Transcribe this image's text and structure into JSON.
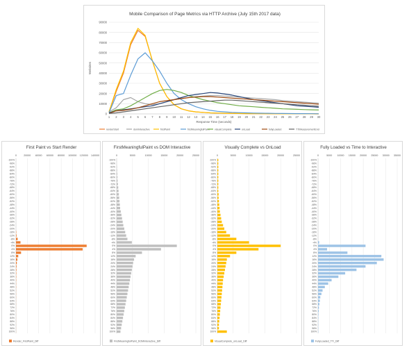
{
  "main_chart": {
    "title": "Mobile Comparison of Page Metrics via HTTP Archive (July 15th 2017 data)",
    "chart_data": {
      "type": "line",
      "title": "Mobile Comparison of Page Metrics via HTTP Archive (July 15th 2017 data)",
      "xlabel": "Response Time (seconds)",
      "ylabel": "Websites",
      "x": [
        1,
        2,
        3,
        4,
        5,
        6,
        7,
        8,
        9,
        10,
        11,
        12,
        13,
        14,
        15,
        16,
        17,
        18,
        19,
        20,
        21,
        22,
        23,
        24,
        25,
        26,
        27,
        28,
        29,
        30
      ],
      "ylim": [
        0,
        90000
      ],
      "yticks": [
        0,
        10000,
        20000,
        30000,
        40000,
        50000,
        60000,
        70000,
        80000,
        90000
      ],
      "grid": true,
      "legend_position": "bottom",
      "series": [
        {
          "name": "renderStart",
          "color": "#ed7d31",
          "values": [
            2000,
            22000,
            40000,
            68000,
            82000,
            76000,
            52000,
            30000,
            17000,
            9000,
            5000,
            3000,
            2000,
            1500,
            1000,
            800,
            600,
            500,
            400,
            300,
            250,
            200,
            150,
            120,
            100,
            80,
            60,
            50,
            40,
            30
          ]
        },
        {
          "name": "domInteractive",
          "color": "#a5a5a5",
          "values": [
            2000,
            6000,
            14000,
            16000,
            12000,
            10000,
            9000,
            10000,
            12000,
            14000,
            15000,
            16000,
            17000,
            17500,
            18000,
            18000,
            17500,
            17000,
            16500,
            16000,
            15500,
            15000,
            14500,
            14000,
            13000,
            12500,
            12000,
            11500,
            11000,
            10500
          ]
        },
        {
          "name": "firstPaint",
          "color": "#ffc000",
          "values": [
            2000,
            24000,
            42000,
            70000,
            84000,
            77000,
            52000,
            30000,
            17000,
            9000,
            5000,
            3000,
            2000,
            1500,
            1000,
            800,
            600,
            500,
            400,
            300,
            250,
            200,
            150,
            120,
            100,
            80,
            60,
            50,
            40,
            30
          ]
        },
        {
          "name": "firstMeaningfulPaint",
          "color": "#5b9bd5",
          "values": [
            1000,
            18000,
            20000,
            38000,
            54000,
            60000,
            52000,
            42000,
            30000,
            20000,
            14000,
            10000,
            7000,
            5000,
            3500,
            2500,
            2000,
            1500,
            1200,
            1000,
            800,
            700,
            600,
            500,
            400,
            350,
            300,
            250,
            200,
            150
          ]
        },
        {
          "name": "visualComplete",
          "color": "#70ad47",
          "values": [
            1000,
            4000,
            5000,
            8000,
            12000,
            16000,
            20000,
            23000,
            24000,
            23000,
            21000,
            18000,
            16000,
            14000,
            12500,
            11000,
            10000,
            9000,
            8000,
            7500,
            7000,
            6500,
            6000,
            5500,
            5000,
            4800,
            4500,
            4200,
            4000,
            3800
          ]
        },
        {
          "name": "onLoad",
          "color": "#264478",
          "values": [
            1000,
            3000,
            4000,
            5000,
            6000,
            7000,
            8000,
            10000,
            12000,
            14000,
            16000,
            18000,
            19000,
            20000,
            21000,
            20500,
            19500,
            18500,
            17000,
            15500,
            14000,
            13000,
            12000,
            11000,
            10000,
            9000,
            8000,
            7500,
            7000,
            6500
          ]
        },
        {
          "name": "fullyLoaded",
          "color": "#9e480e",
          "values": [
            500,
            3000,
            3500,
            4500,
            6000,
            8000,
            10000,
            12000,
            13000,
            14000,
            15000,
            16000,
            16500,
            17000,
            17000,
            16500,
            16000,
            15500,
            15000,
            14500,
            14000,
            13500,
            13000,
            12500,
            12000,
            11500,
            11000,
            10500,
            10000,
            9500
          ]
        },
        {
          "name": "TTIMeasurementEnd",
          "color": "#636363",
          "values": [
            500,
            1000,
            2000,
            3000,
            4000,
            5000,
            6000,
            7000,
            8000,
            9000,
            10000,
            11000,
            11500,
            12000,
            12500,
            13000,
            13500,
            13500,
            13000,
            12500,
            12000,
            11500,
            11000,
            10500,
            10000,
            9500,
            9000,
            8500,
            8000,
            7500
          ]
        }
      ]
    }
  },
  "y_categories": [
    "-100%",
    "-96%",
    "-92%",
    "-88%",
    "-84%",
    "-80%",
    "-76%",
    "-72%",
    "-68%",
    "-64%",
    "-60%",
    "-56%",
    "-52%",
    "-48%",
    "-44%",
    "-40%",
    "-36%",
    "-32%",
    "-28%",
    "-24%",
    "-20%",
    "-16%",
    "-12%",
    "-8%",
    "-4%",
    "0%",
    "4%",
    "8%",
    "12%",
    "16%",
    "20%",
    "24%",
    "28%",
    "32%",
    "36%",
    "40%",
    "44%",
    "48%",
    "52%",
    "56%",
    "60%",
    "64%",
    "68%",
    "72%",
    "76%",
    "80%",
    "84%",
    "88%",
    "92%",
    "96%",
    "100%"
  ],
  "diff_charts": [
    {
      "title": "First Paint vs Start Render",
      "chart_data": {
        "type": "bar",
        "orientation": "horizontal",
        "title": "First Paint vs Start Render",
        "xlim": [
          0,
          140000
        ],
        "xticks": [
          0,
          20000,
          40000,
          60000,
          80000,
          100000,
          120000,
          140000
        ],
        "series": [
          {
            "name": "Render_FirstPaint_Diff",
            "color": "#ed7d31",
            "values": [
              0,
              0,
              0,
              0,
              0,
              0,
              0,
              0,
              0,
              0,
              0,
              0,
              0,
              0,
              0,
              0,
              0,
              0,
              0,
              0,
              0,
              500,
              1000,
              3000,
              8000,
              125000,
              118000,
              9000,
              4000,
              2500,
              1500,
              1000,
              800,
              600,
              500,
              400,
              300,
              300,
              200,
              200,
              200,
              150,
              150,
              100,
              100,
              100,
              100,
              100,
              100,
              100,
              100
            ]
          }
        ]
      }
    },
    {
      "title": "FirstMeaningfulPaint vs DOM Interactive",
      "chart_data": {
        "type": "bar",
        "orientation": "horizontal",
        "title": "FirstMeaningfulPaint vs DOM Interactive",
        "xlim": [
          0,
          25000
        ],
        "xticks": [
          0,
          5000,
          10000,
          15000,
          20000,
          25000
        ],
        "series": [
          {
            "name": "FirstMeaningfulPaint_DOMInteractive_Diff",
            "color": "#bfbfbf",
            "values": [
              0,
              0,
              100,
              150,
              200,
              250,
              300,
              400,
              500,
              600,
              700,
              800,
              900,
              1000,
              1100,
              1300,
              1500,
              1700,
              1900,
              2100,
              2400,
              2700,
              3000,
              3400,
              4800,
              19000,
              14000,
              8000,
              6000,
              5500,
              5200,
              5000,
              4800,
              4600,
              4400,
              4200,
              4000,
              3800,
              3600,
              3400,
              3200,
              3000,
              2800,
              2600,
              2400,
              2200,
              2000,
              1800,
              1600,
              1400,
              1200
            ]
          }
        ]
      }
    },
    {
      "title": "Visually Complete vs OnLoad",
      "chart_data": {
        "type": "bar",
        "orientation": "horizontal",
        "title": "Visually Complete vs OnLoad",
        "xlim": [
          0,
          25000
        ],
        "xticks": [
          0,
          5000,
          10000,
          15000,
          20000,
          25000
        ],
        "series": [
          {
            "name": "VisualComplete_onLoad_Diff",
            "color": "#ffc000",
            "values": [
              300,
              300,
              300,
              300,
              300,
              300,
              300,
              300,
              300,
              300,
              400,
              400,
              500,
              600,
              700,
              800,
              1000,
              1200,
              1400,
              1800,
              2200,
              2800,
              4000,
              6000,
              10000,
              20000,
              13000,
              6000,
              4000,
              3000,
              2800,
              2600,
              2400,
              2200,
              2000,
              1800,
              1700,
              1600,
              1500,
              1400,
              1300,
              1200,
              1100,
              1000,
              900,
              800,
              700,
              600,
              500,
              500,
              3000
            ]
          }
        ]
      }
    },
    {
      "title": "Fully Loaded vs Time to Interactive",
      "chart_data": {
        "type": "bar",
        "orientation": "horizontal",
        "title": "Fully Loaded vs Time to Interactive",
        "xlim": [
          0,
          35000
        ],
        "xticks": [
          0,
          5000,
          10000,
          15000,
          20000,
          25000,
          30000,
          35000
        ],
        "series": [
          {
            "name": "FullyLoaded_TTI_Diff",
            "color": "#9dc3e6",
            "values": [
              0,
              0,
              0,
              0,
              0,
              0,
              0,
              0,
              0,
              0,
              0,
              0,
              0,
              0,
              0,
              0,
              0,
              0,
              0,
              0,
              0,
              0,
              0,
              0,
              500,
              21000,
              4000,
              13000,
              28000,
              29000,
              26000,
              21000,
              17000,
              12000,
              9000,
              6000,
              4500,
              3000,
              2000,
              1500,
              1000,
              800,
              600,
              400,
              300,
              200,
              150,
              100,
              100,
              100,
              100
            ]
          }
        ]
      }
    }
  ]
}
